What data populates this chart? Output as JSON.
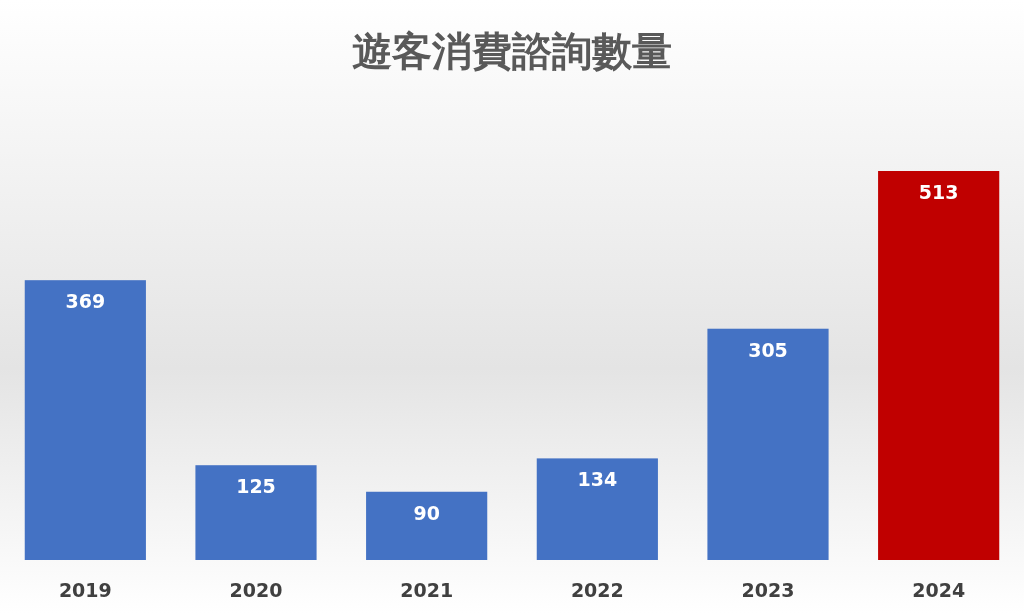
{
  "chart_data": {
    "type": "bar",
    "title": "遊客消費諮詢數量",
    "categories": [
      "2019",
      "2020",
      "2021",
      "2022",
      "2023",
      "2024"
    ],
    "values": [
      369,
      125,
      90,
      134,
      305,
      513
    ],
    "colors": [
      "#4472c4",
      "#4472c4",
      "#4472c4",
      "#4472c4",
      "#4472c4",
      "#c00000"
    ],
    "data_labels": true
  }
}
